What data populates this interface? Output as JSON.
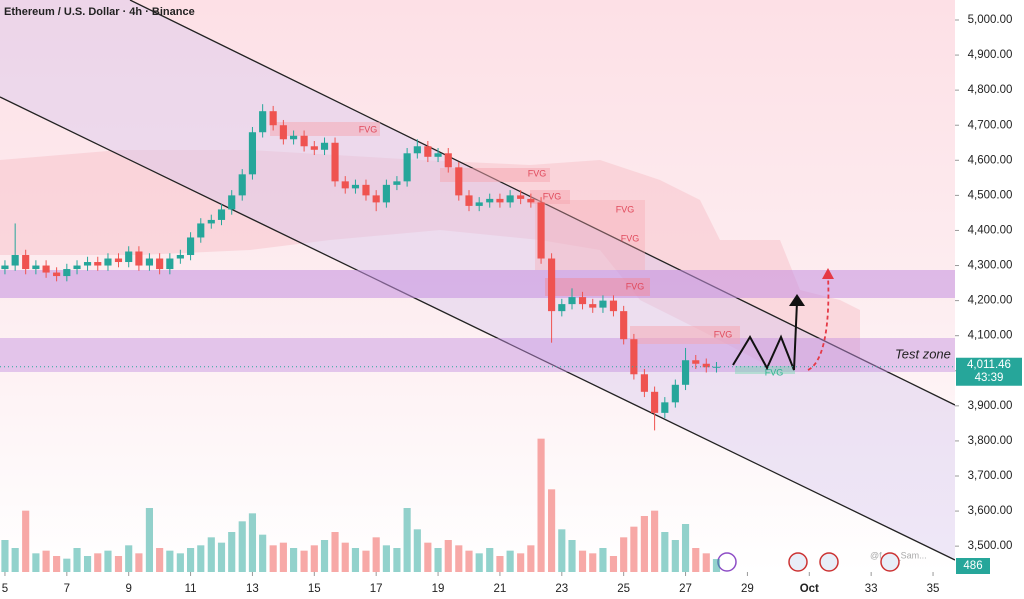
{
  "chart_data": {
    "type": "candlestick",
    "title": "Ethereum / U.S. Dollar · 4h · Binance",
    "x": [
      5,
      5.33,
      5.67,
      6,
      6.33,
      6.67,
      7,
      7.33,
      7.67,
      8,
      8.33,
      8.67,
      9,
      9.33,
      9.67,
      10,
      10.33,
      10.67,
      11,
      11.33,
      11.67,
      12,
      12.33,
      12.67,
      13,
      13.33,
      13.67,
      14,
      14.33,
      14.67,
      15,
      15.33,
      15.67,
      16,
      16.33,
      16.67,
      17,
      17.33,
      17.67,
      18,
      18.33,
      18.67,
      19,
      19.33,
      19.67,
      20,
      20.33,
      20.67,
      21,
      21.33,
      21.67,
      22,
      22.33,
      22.67,
      23,
      23.33,
      23.67,
      24,
      24.33,
      24.67,
      25,
      25.33,
      25.67,
      26,
      26.33,
      26.67,
      27,
      27.33,
      27.67,
      28
    ],
    "open": [
      4290,
      4300,
      4330,
      4290,
      4300,
      4280,
      4270,
      4290,
      4300,
      4310,
      4300,
      4320,
      4310,
      4340,
      4300,
      4320,
      4290,
      4320,
      4330,
      4380,
      4420,
      4430,
      4460,
      4500,
      4560,
      4680,
      4740,
      4700,
      4660,
      4670,
      4640,
      4630,
      4650,
      4540,
      4520,
      4530,
      4500,
      4480,
      4530,
      4540,
      4620,
      4640,
      4610,
      4620,
      4580,
      4500,
      4470,
      4480,
      4490,
      4480,
      4500,
      4490,
      4480,
      4320,
      4170,
      4190,
      4210,
      4190,
      4180,
      4200,
      4170,
      4090,
      3990,
      3940,
      3880,
      3910,
      3960,
      4030,
      4020,
      4010
    ],
    "high": [
      4315,
      4420,
      4345,
      4315,
      4315,
      4295,
      4305,
      4315,
      4325,
      4325,
      4335,
      4335,
      4355,
      4355,
      4335,
      4335,
      4335,
      4345,
      4395,
      4435,
      4445,
      4475,
      4515,
      4575,
      4695,
      4760,
      4755,
      4715,
      4685,
      4685,
      4655,
      4665,
      4665,
      4555,
      4545,
      4545,
      4515,
      4545,
      4555,
      4635,
      4660,
      4655,
      4635,
      4635,
      4595,
      4515,
      4495,
      4505,
      4505,
      4515,
      4515,
      4505,
      4495,
      4335,
      4205,
      4235,
      4225,
      4205,
      4215,
      4215,
      4185,
      4105,
      4005,
      3955,
      3925,
      3975,
      4065,
      4045,
      4035,
      4025
    ],
    "low": [
      4275,
      4285,
      4275,
      4275,
      4265,
      4255,
      4255,
      4275,
      4285,
      4285,
      4285,
      4295,
      4295,
      4285,
      4285,
      4275,
      4275,
      4305,
      4315,
      4365,
      4405,
      4415,
      4445,
      4485,
      4545,
      4665,
      4685,
      4645,
      4645,
      4625,
      4615,
      4615,
      4525,
      4505,
      4505,
      4485,
      4455,
      4465,
      4515,
      4525,
      4605,
      4595,
      4595,
      4565,
      4485,
      4455,
      4455,
      4465,
      4465,
      4465,
      4475,
      4465,
      4305,
      4080,
      4155,
      4175,
      4175,
      4165,
      4165,
      4155,
      4075,
      3975,
      3925,
      3830,
      3865,
      3895,
      3945,
      4005,
      3995,
      3995
    ],
    "close": [
      4300,
      4330,
      4290,
      4300,
      4280,
      4270,
      4290,
      4300,
      4310,
      4300,
      4320,
      4310,
      4340,
      4300,
      4320,
      4290,
      4320,
      4330,
      4380,
      4420,
      4430,
      4460,
      4500,
      4560,
      4680,
      4740,
      4700,
      4660,
      4670,
      4640,
      4630,
      4650,
      4540,
      4520,
      4530,
      4500,
      4480,
      4530,
      4540,
      4620,
      4640,
      4610,
      4620,
      4580,
      4500,
      4470,
      4480,
      4490,
      4480,
      4500,
      4490,
      4480,
      4320,
      4170,
      4190,
      4210,
      4190,
      4180,
      4200,
      4170,
      4090,
      3990,
      3940,
      3880,
      3910,
      3960,
      4030,
      4020,
      4010,
      4011.46
    ],
    "volume": [
      1200,
      900,
      2300,
      700,
      800,
      600,
      500,
      900,
      600,
      700,
      800,
      600,
      1000,
      700,
      2400,
      900,
      800,
      700,
      900,
      1000,
      1300,
      1100,
      1500,
      1900,
      2200,
      1400,
      1000,
      1100,
      900,
      800,
      1000,
      1200,
      1500,
      1100,
      900,
      800,
      1300,
      1000,
      900,
      2400,
      1600,
      1100,
      900,
      1200,
      1000,
      800,
      700,
      900,
      600,
      800,
      700,
      1000,
      5000,
      3100,
      1600,
      1200,
      800,
      700,
      900,
      600,
      1300,
      1700,
      2100,
      2300,
      1500,
      1200,
      1800,
      900,
      700,
      486
    ],
    "up_color": "#26a69a",
    "down_color": "#ef5350",
    "xlim": [
      4.84,
      35.71
    ],
    "ylim": [
      3432,
      5057
    ],
    "vlim": [
      0,
      6000
    ],
    "xticks": [
      5,
      7,
      9,
      11,
      13,
      15,
      17,
      19,
      21,
      23,
      25,
      27,
      29,
      {
        "value": 31,
        "label": "Oct"
      },
      33,
      35
    ],
    "yticks": [
      {
        "value": 3500,
        "label": "3,500.00"
      },
      {
        "value": 3600,
        "label": "3,600.00"
      },
      {
        "value": 3700,
        "label": "3,700.00"
      },
      {
        "value": 3800,
        "label": "3,800.00"
      },
      {
        "value": 3900,
        "label": "3,900.00"
      },
      {
        "value": 4000,
        "label": "4,000.00"
      },
      {
        "value": 4100,
        "label": "4,100.00"
      },
      {
        "value": 4200,
        "label": "4,200.00"
      },
      {
        "value": 4300,
        "label": "4,300.00"
      },
      {
        "value": 4400,
        "label": "4,400.00"
      },
      {
        "value": 4500,
        "label": "4,500.00"
      },
      {
        "value": 4600,
        "label": "4,600.00"
      },
      {
        "value": 4700,
        "label": "4,700.00"
      },
      {
        "value": 4800,
        "label": "4,800.00"
      },
      {
        "value": 4900,
        "label": "4,900.00"
      },
      {
        "value": 5000,
        "label": "5,000.00"
      }
    ],
    "last_price": {
      "value": 4011.46,
      "label": "4,011.46"
    },
    "countdown": "43:39",
    "annotations": [
      "FVG",
      "FVG",
      "FVG",
      "FVG",
      "FVG",
      "FVG",
      "FVG",
      "FVG",
      "Test zone"
    ],
    "watermark": "@f...w_Sam..."
  }
}
